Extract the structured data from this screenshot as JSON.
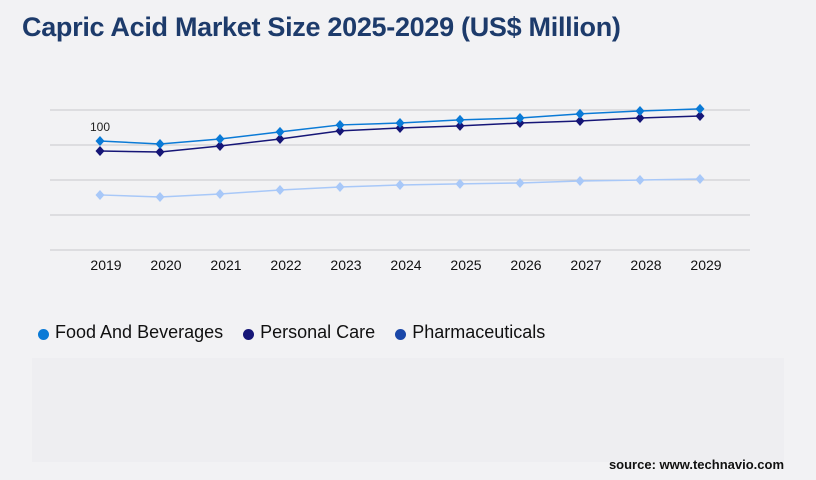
{
  "title": "Capric Acid Market Size 2025-2029 (US$ Million)",
  "source": "source: www.technavio.com",
  "chart_data": {
    "type": "line",
    "title": "Capric Acid Market Size 2025-2029 (US$ Million)",
    "x": [
      "2019",
      "2020",
      "2021",
      "2022",
      "2023",
      "2024",
      "2025",
      "2026",
      "2027",
      "2028",
      "2029"
    ],
    "ylim": [
      0,
      128.4
    ],
    "grid": true,
    "legend": "bottom-left",
    "annotations": [
      {
        "x": "2019",
        "series": "Food And Beverages",
        "text": "100"
      }
    ],
    "series": [
      {
        "name": "Food And Beverages",
        "color": "#0a7ad6",
        "values": [
          100,
          97.2,
          101.8,
          108.3,
          114.7,
          116.5,
          119.3,
          121.1,
          124.8,
          127.5,
          129.4
        ]
      },
      {
        "name": "Personal Care",
        "color": "#161677",
        "values": [
          90.8,
          89.9,
          95.4,
          101.8,
          109.2,
          111.9,
          113.8,
          116.5,
          118.3,
          121.1,
          122.9
        ]
      },
      {
        "name": "Pharmaceuticals",
        "color": "#a8c8f8",
        "legend_color": "#1a47a8",
        "values": [
          50.5,
          48.6,
          51.4,
          55.0,
          57.8,
          59.6,
          60.6,
          61.5,
          63.3,
          64.2,
          65.1
        ]
      }
    ]
  }
}
